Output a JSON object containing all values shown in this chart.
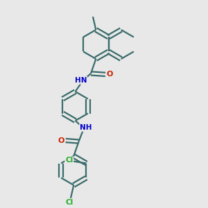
{
  "background_color": "#e8e8e8",
  "bond_color": "#3a6b6b",
  "N_color": "#0000cc",
  "O_color": "#cc2200",
  "Cl_color": "#22aa22",
  "line_width": 1.6,
  "figsize": [
    3.0,
    3.0
  ],
  "dpi": 100,
  "xlim": [
    0,
    10
  ],
  "ylim": [
    0,
    10
  ]
}
